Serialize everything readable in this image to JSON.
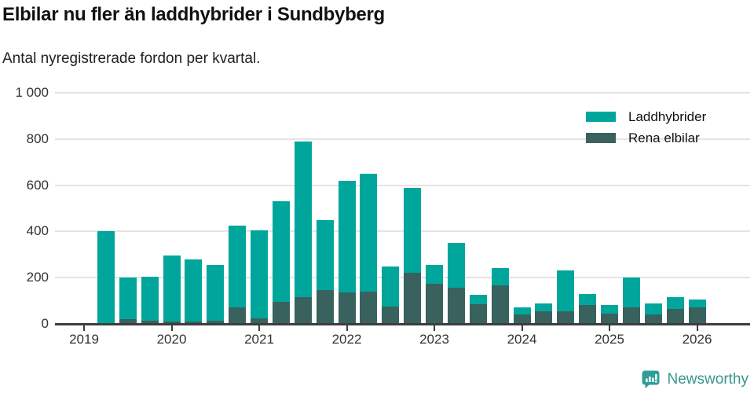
{
  "header": {
    "title": "Elbilar nu fler än laddhybrider i Sundbyberg",
    "subtitle": "Antal nyregistrerade fordon per kvartal."
  },
  "legend": {
    "items": [
      {
        "label": "Laddhybrider",
        "color": "#00a69b"
      },
      {
        "label": "Rena elbilar",
        "color": "#39615d"
      }
    ]
  },
  "footer": {
    "brand": "Newsworthy",
    "brand_color": "#3a9490",
    "logo_icon": "bar-chart-speech-bubble-icon",
    "logo_color": "#2f9e98"
  },
  "colors": {
    "laddhybrider": "#00a69b",
    "rena_elbilar": "#39615d",
    "grid": "#e4e4e4",
    "axis": "#3d3d3d",
    "tick_text": "#333333"
  },
  "chart_data": {
    "type": "bar",
    "stacked": true,
    "title": "Elbilar nu fler än laddhybrider i Sundbyberg",
    "subtitle": "Antal nyregistrerade fordon per kvartal.",
    "categories": [
      "2019 K2",
      "2019 K3",
      "2019 K4",
      "2020 K1",
      "2020 K2",
      "2020 K3",
      "2020 K4",
      "2021 K1",
      "2021 K2",
      "2021 K3",
      "2021 K4",
      "2022 K1",
      "2022 K2",
      "2022 K3",
      "2022 K4",
      "2023 K1",
      "2023 K2",
      "2023 K3",
      "2023 K4",
      "2024 K1",
      "2024 K2",
      "2024 K3",
      "2024 K4",
      "2025 K1",
      "2025 K2",
      "2025 K3",
      "2025 K4",
      "2026 K1"
    ],
    "series": [
      {
        "name": "Rena elbilar",
        "color": "#39615d",
        "stack_order": "bottom",
        "values": [
          5,
          20,
          15,
          10,
          10,
          15,
          70,
          25,
          95,
          115,
          145,
          135,
          140,
          75,
          220,
          175,
          155,
          85,
          165,
          40,
          55,
          55,
          80,
          45,
          70,
          40,
          65,
          70
        ]
      },
      {
        "name": "Laddhybrider",
        "color": "#00a69b",
        "stack_order": "top",
        "values": [
          395,
          180,
          190,
          285,
          270,
          240,
          355,
          380,
          435,
          675,
          305,
          485,
          510,
          175,
          370,
          80,
          195,
          40,
          75,
          30,
          35,
          175,
          50,
          35,
          130,
          50,
          50,
          35
        ]
      }
    ],
    "stack_totals": [
      400,
      200,
      205,
      295,
      280,
      255,
      425,
      405,
      530,
      790,
      450,
      620,
      650,
      250,
      590,
      255,
      350,
      125,
      240,
      70,
      90,
      230,
      130,
      80,
      200,
      90,
      115,
      105
    ],
    "x_year_ticks": [
      "2019",
      "2020",
      "2021",
      "2022",
      "2023",
      "2024",
      "2025",
      "2026"
    ],
    "y_ticks": [
      0,
      200,
      400,
      600,
      800,
      1000
    ],
    "y_tick_labels": [
      "0",
      "200",
      "400",
      "600",
      "800",
      "1 000"
    ],
    "ylim": [
      0,
      1000
    ],
    "xlabel": "",
    "ylabel": "",
    "grid": "horizontal",
    "legend_position": "top-right"
  }
}
